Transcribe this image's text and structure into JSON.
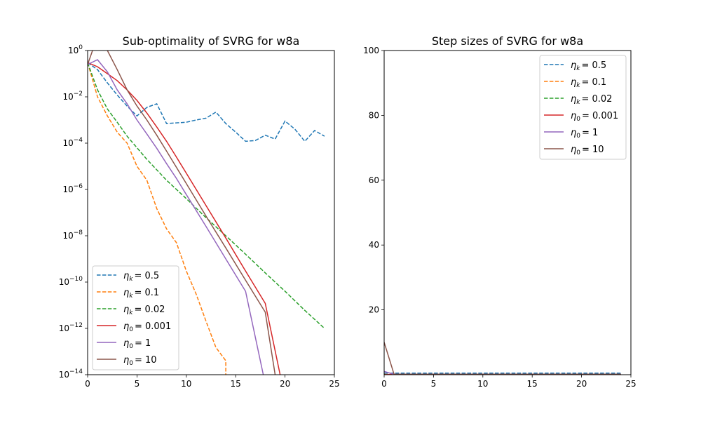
{
  "colors": {
    "blue": "#1f77b4",
    "orange": "#ff7f0e",
    "green": "#2ca02c",
    "red": "#d62728",
    "purple": "#9467bd",
    "brown": "#8c564b"
  },
  "chart_data": [
    {
      "type": "line",
      "title": "Sub-optimality of SVRG for w8a",
      "xlabel": "",
      "ylabel": "",
      "xlim": [
        0,
        25
      ],
      "ylim": [
        1e-14,
        1
      ],
      "yscale": "log",
      "xticks": [
        "0",
        "5",
        "10",
        "15",
        "20",
        "25"
      ],
      "yticks": [
        {
          "base": "10",
          "exp": "0"
        },
        {
          "base": "10",
          "exp": "−2"
        },
        {
          "base": "10",
          "exp": "−4"
        },
        {
          "base": "10",
          "exp": "−6"
        },
        {
          "base": "10",
          "exp": "−8"
        },
        {
          "base": "10",
          "exp": "−10"
        },
        {
          "base": "10",
          "exp": "−12"
        },
        {
          "base": "10",
          "exp": "−14"
        }
      ],
      "legend_position": "lower-left",
      "series": [
        {
          "name": "η_k = 0.5",
          "sym": "η",
          "sub": "k",
          "val": "= 0.5",
          "color": "blue",
          "dash": true,
          "x": [
            0,
            1,
            2,
            3,
            4,
            5,
            6,
            7,
            8,
            9,
            10,
            11,
            12,
            13,
            14,
            15,
            16,
            17,
            18,
            19,
            20,
            21,
            22,
            23,
            24
          ],
          "y": [
            0.3,
            0.15,
            0.04,
            0.012,
            0.004,
            0.0015,
            0.0035,
            0.005,
            0.0007,
            0.00075,
            0.0008,
            0.001,
            0.0012,
            0.0022,
            0.0007,
            0.0003,
            0.00012,
            0.00013,
            0.00022,
            0.00015,
            0.0009,
            0.0004,
            0.00012,
            0.00035,
            0.0002
          ]
        },
        {
          "name": "η_k = 0.1",
          "sym": "η",
          "sub": "k",
          "val": "= 0.1",
          "color": "orange",
          "dash": true,
          "x": [
            0,
            1,
            2,
            3,
            4,
            5,
            6,
            7,
            8,
            9,
            10,
            11,
            12,
            13,
            14,
            14
          ],
          "y": [
            0.3,
            0.01,
            0.0015,
            0.0003,
            0.0001,
            1e-05,
            2.5e-06,
            1.5e-07,
            2e-08,
            5e-09,
            3e-10,
            3e-11,
            2e-12,
            1.5e-13,
            4e-14,
            1e-14
          ]
        },
        {
          "name": "η_k = 0.02",
          "sym": "η",
          "sub": "k",
          "val": "= 0.02",
          "color": "green",
          "dash": true,
          "x": [
            0,
            1,
            2,
            3,
            4,
            6,
            8,
            10,
            12,
            14,
            16,
            18,
            20,
            22,
            24
          ],
          "y": [
            0.3,
            0.02,
            0.003,
            0.0008,
            0.0002,
            2e-05,
            2.5e-06,
            4e-07,
            6e-08,
            1e-08,
            1.6e-09,
            2.5e-10,
            4e-11,
            6e-12,
            1e-12
          ]
        },
        {
          "name": "η_0 = 0.001",
          "sym": "η",
          "sub": "0",
          "val": "= 0.001",
          "color": "red",
          "dash": false,
          "x": [
            0,
            1,
            2,
            3,
            4,
            5,
            6,
            7,
            8,
            9,
            10,
            12,
            14,
            16,
            18,
            19.5
          ],
          "y": [
            0.3,
            0.2,
            0.1,
            0.05,
            0.02,
            0.007,
            0.002,
            0.0005,
            0.00012,
            2.5e-05,
            5e-06,
            2e-07,
            8e-09,
            3e-10,
            1.2e-11,
            1e-14
          ]
        },
        {
          "name": "η_0 = 1",
          "sym": "η",
          "sub": "0",
          "val": "= 1",
          "color": "purple",
          "dash": false,
          "x": [
            0,
            1,
            2,
            3,
            4,
            5,
            6,
            7,
            8,
            9,
            10,
            12,
            14,
            16,
            17.8
          ],
          "y": [
            0.25,
            0.4,
            0.12,
            0.02,
            0.005,
            0.001,
            0.00025,
            6e-05,
            1.3e-05,
            3e-06,
            6e-07,
            2.5e-08,
            1e-09,
            4e-11,
            1e-14
          ]
        },
        {
          "name": "η_0 = 10",
          "sym": "η",
          "sub": "0",
          "val": "= 10",
          "color": "brown",
          "dash": false,
          "x": [
            0,
            0.5,
            1,
            2,
            3,
            4,
            5,
            6,
            7,
            8,
            9,
            10,
            12,
            14,
            16,
            18,
            19
          ],
          "y": [
            0.25,
            1,
            2,
            1,
            0.15,
            0.02,
            0.004,
            0.001,
            0.00022,
            4.5e-05,
            9e-06,
            1.8e-06,
            7e-08,
            3e-09,
            1.2e-10,
            5e-12,
            1e-14
          ]
        }
      ]
    },
    {
      "type": "line",
      "title": "Step sizes of SVRG for w8a",
      "xlabel": "",
      "ylabel": "",
      "xlim": [
        0,
        25
      ],
      "ylim": [
        0,
        100
      ],
      "yscale": "linear",
      "xticks": [
        "0",
        "5",
        "10",
        "15",
        "20",
        "25"
      ],
      "yticks": [
        "20",
        "40",
        "60",
        "80",
        "100"
      ],
      "legend_position": "top-right",
      "series": [
        {
          "name": "η_k = 0.5",
          "color": "blue",
          "dash": true,
          "x": [
            0,
            24
          ],
          "y": [
            0.5,
            0.5
          ]
        },
        {
          "name": "η_k = 0.1",
          "color": "orange",
          "dash": true,
          "x": [
            0,
            24
          ],
          "y": [
            0.1,
            0.1
          ]
        },
        {
          "name": "η_k = 0.02",
          "color": "green",
          "dash": true,
          "x": [
            0,
            24
          ],
          "y": [
            0.02,
            0.02
          ]
        },
        {
          "name": "η_0 = 0.001",
          "color": "red",
          "dash": false,
          "x": [
            0,
            1,
            24
          ],
          "y": [
            0.001,
            0.15,
            0.15
          ]
        },
        {
          "name": "η_0 = 1",
          "color": "purple",
          "dash": false,
          "x": [
            0,
            1,
            24
          ],
          "y": [
            1,
            0.15,
            0.15
          ]
        },
        {
          "name": "η_0 = 10",
          "color": "brown",
          "dash": false,
          "x": [
            0,
            1,
            24
          ],
          "y": [
            10,
            0.15,
            0.15
          ]
        }
      ]
    }
  ]
}
